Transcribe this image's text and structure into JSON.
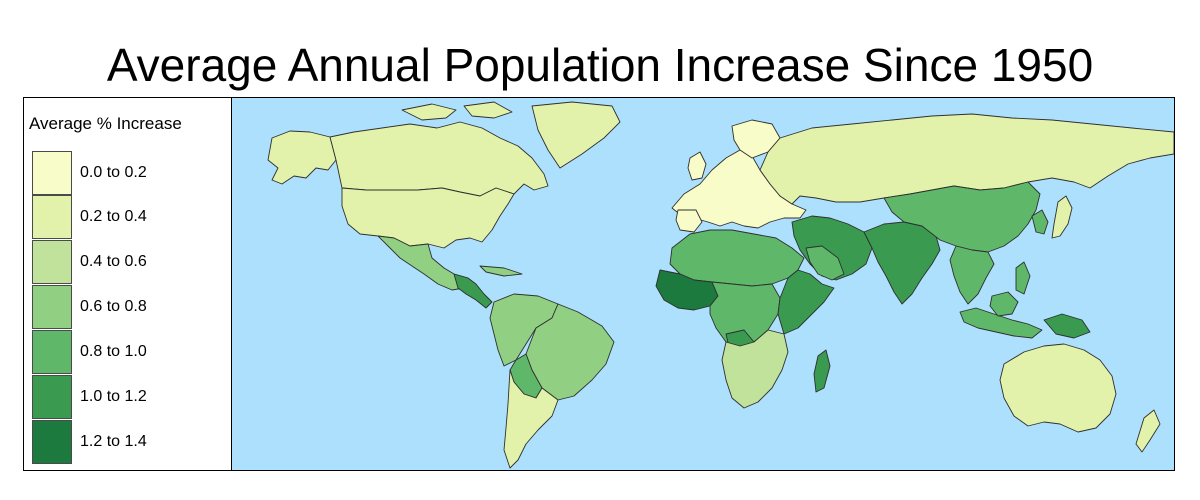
{
  "title": "Average Annual Population Increase Since 1950",
  "legend": {
    "title": "Average % Increase",
    "items": [
      {
        "label": "0.0 to 0.2",
        "color": "#f8fcc8"
      },
      {
        "label": "0.2 to 0.4",
        "color": "#e2f2aa"
      },
      {
        "label": "0.4 to 0.6",
        "color": "#c0e29a"
      },
      {
        "label": "0.6 to 0.8",
        "color": "#91d083"
      },
      {
        "label": "0.8 to 1.0",
        "color": "#5fb86a"
      },
      {
        "label": "1.0 to 1.2",
        "color": "#399a50"
      },
      {
        "label": "1.2 to 1.4",
        "color": "#1c7a3f"
      }
    ]
  },
  "map": {
    "ocean_color": "#ade0fc",
    "regions": [
      {
        "name": "canada",
        "class": "0.2 to 0.4"
      },
      {
        "name": "alaska",
        "class": "0.2 to 0.4"
      },
      {
        "name": "greenland",
        "class": "0.2 to 0.4"
      },
      {
        "name": "united-states",
        "class": "0.2 to 0.4"
      },
      {
        "name": "mexico",
        "class": "0.6 to 0.8"
      },
      {
        "name": "central-america",
        "class": "1.0 to 1.2"
      },
      {
        "name": "south-america-north",
        "class": "0.6 to 0.8"
      },
      {
        "name": "brazil",
        "class": "0.6 to 0.8"
      },
      {
        "name": "southern-cone",
        "class": "0.2 to 0.4"
      },
      {
        "name": "europe",
        "class": "0.0 to 0.2"
      },
      {
        "name": "russia",
        "class": "0.2 to 0.4"
      },
      {
        "name": "north-africa",
        "class": "0.8 to 1.0"
      },
      {
        "name": "west-africa",
        "class": "1.2 to 1.4"
      },
      {
        "name": "central-africa",
        "class": "0.8 to 1.0"
      },
      {
        "name": "east-africa",
        "class": "1.0 to 1.2"
      },
      {
        "name": "southern-africa",
        "class": "0.4 to 0.6"
      },
      {
        "name": "madagascar",
        "class": "1.0 to 1.2"
      },
      {
        "name": "middle-east",
        "class": "1.0 to 1.2"
      },
      {
        "name": "south-asia",
        "class": "1.0 to 1.2"
      },
      {
        "name": "china",
        "class": "0.8 to 1.0"
      },
      {
        "name": "southeast-asia",
        "class": "0.8 to 1.0"
      },
      {
        "name": "indonesia",
        "class": "0.8 to 1.0"
      },
      {
        "name": "papua-new-guinea",
        "class": "1.0 to 1.2"
      },
      {
        "name": "australia",
        "class": "0.2 to 0.4"
      },
      {
        "name": "new-zealand",
        "class": "0.2 to 0.4"
      },
      {
        "name": "japan",
        "class": "0.2 to 0.4"
      }
    ]
  }
}
